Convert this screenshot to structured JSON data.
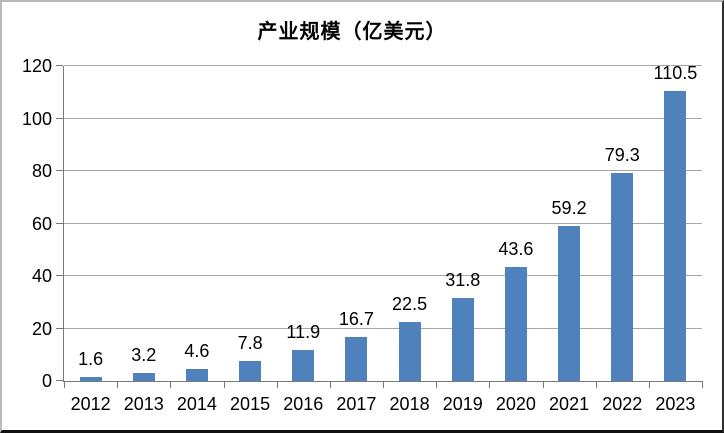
{
  "chart_data": {
    "type": "bar",
    "title": "产业规模（亿美元）",
    "categories": [
      "2012",
      "2013",
      "2014",
      "2015",
      "2016",
      "2017",
      "2018",
      "2019",
      "2020",
      "2021",
      "2022",
      "2023"
    ],
    "values": [
      1.6,
      3.2,
      4.6,
      7.8,
      11.9,
      16.7,
      22.5,
      31.8,
      43.6,
      59.2,
      79.3,
      110.5
    ],
    "value_labels": [
      "1.6",
      "3.2",
      "4.6",
      "7.8",
      "11.9",
      "16.7",
      "22.5",
      "31.8",
      "43.6",
      "59.2",
      "79.3",
      "110.5"
    ],
    "xlabel": "",
    "ylabel": "",
    "ylim": [
      0,
      120
    ],
    "yticks": [
      0,
      20,
      40,
      60,
      80,
      100,
      120
    ],
    "grid": true,
    "legend_position": "none",
    "colors": {
      "bar": "#4f81bd",
      "gridline": "#a6a6a6",
      "axis": "#7a7a7a",
      "text": "#000000"
    }
  }
}
